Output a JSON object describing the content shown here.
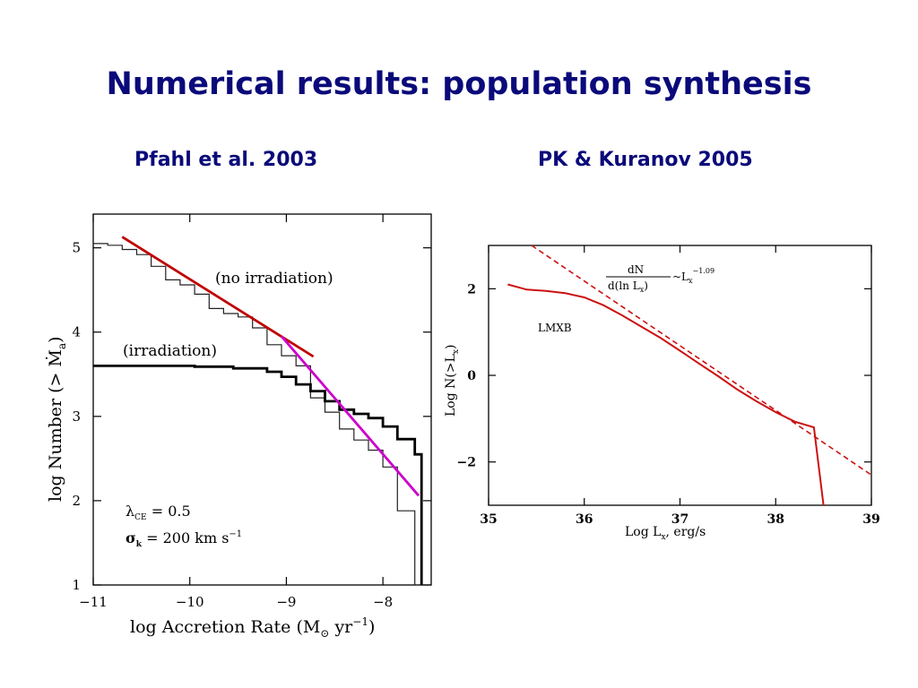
{
  "slide": {
    "title": "Numerical results: population synthesis",
    "left_caption": "Pfahl et al. 2003",
    "right_caption": "PK & Kuranov 2005"
  },
  "chart_data": [
    {
      "type": "line",
      "xlabel": "log Accretion Rate (M",
      "xlabel_sub": "⊙",
      "xlabel_tail": " yr",
      "xlabel_sup": "−1",
      "xlabel_end": ")",
      "ylabel": "log Number (> Ṁ",
      "ylabel_sub": "a",
      "ylabel_end": ")",
      "xlim": [
        -11,
        -7.5
      ],
      "ylim": [
        1,
        5.4
      ],
      "xticks": [
        -11,
        -10,
        -9,
        -8
      ],
      "xtick_labels": [
        "−11",
        "−10",
        "−9",
        "−8"
      ],
      "yticks": [
        1,
        2,
        3,
        4,
        5
      ],
      "ytick_labels": [
        "1",
        "2",
        "3",
        "4",
        "5"
      ],
      "annotations": {
        "no_irradiation": "(no irradiation)",
        "irradiation": "(irradiation)",
        "lambda_label": "λ",
        "lambda_sub": "CE",
        "lambda_value": " = 0.5",
        "sigma_label": "σ",
        "sigma_sub": "k",
        "sigma_value": " = 200  km s",
        "sigma_sup": "−1"
      },
      "series": [
        {
          "style": "step-thin",
          "color": "#222222",
          "points": [
            [
              -11,
              5.05
            ],
            [
              -10.85,
              5.05
            ],
            [
              -10.85,
              5.03
            ],
            [
              -10.7,
              5.03
            ],
            [
              -10.7,
              4.98
            ],
            [
              -10.55,
              4.98
            ],
            [
              -10.55,
              4.92
            ],
            [
              -10.4,
              4.92
            ],
            [
              -10.4,
              4.78
            ],
            [
              -10.25,
              4.78
            ],
            [
              -10.25,
              4.62
            ],
            [
              -10.1,
              4.62
            ],
            [
              -10.1,
              4.56
            ],
            [
              -9.95,
              4.56
            ],
            [
              -9.95,
              4.45
            ],
            [
              -9.8,
              4.45
            ],
            [
              -9.8,
              4.28
            ],
            [
              -9.65,
              4.28
            ],
            [
              -9.65,
              4.22
            ],
            [
              -9.5,
              4.22
            ],
            [
              -9.5,
              4.18
            ],
            [
              -9.35,
              4.18
            ],
            [
              -9.35,
              4.05
            ],
            [
              -9.2,
              4.05
            ],
            [
              -9.2,
              3.85
            ],
            [
              -9.05,
              3.85
            ],
            [
              -9.05,
              3.72
            ],
            [
              -8.9,
              3.72
            ],
            [
              -8.9,
              3.6
            ],
            [
              -8.75,
              3.6
            ],
            [
              -8.75,
              3.22
            ],
            [
              -8.6,
              3.22
            ],
            [
              -8.6,
              3.05
            ],
            [
              -8.45,
              3.05
            ],
            [
              -8.45,
              2.85
            ],
            [
              -8.3,
              2.85
            ],
            [
              -8.3,
              2.72
            ],
            [
              -8.15,
              2.72
            ],
            [
              -8.15,
              2.6
            ],
            [
              -8.0,
              2.6
            ],
            [
              -8.0,
              2.4
            ],
            [
              -7.85,
              2.4
            ],
            [
              -7.85,
              1.88
            ],
            [
              -7.67,
              1.88
            ],
            [
              -7.67,
              1.0
            ]
          ]
        },
        {
          "name": "(irradiation)",
          "style": "step-thick",
          "color": "#000000",
          "points": [
            [
              -11,
              3.6
            ],
            [
              -9.95,
              3.6
            ],
            [
              -9.95,
              3.59
            ],
            [
              -9.55,
              3.59
            ],
            [
              -9.55,
              3.57
            ],
            [
              -9.2,
              3.57
            ],
            [
              -9.2,
              3.53
            ],
            [
              -9.05,
              3.53
            ],
            [
              -9.05,
              3.47
            ],
            [
              -8.9,
              3.47
            ],
            [
              -8.9,
              3.38
            ],
            [
              -8.75,
              3.38
            ],
            [
              -8.75,
              3.3
            ],
            [
              -8.6,
              3.3
            ],
            [
              -8.6,
              3.18
            ],
            [
              -8.45,
              3.18
            ],
            [
              -8.45,
              3.08
            ],
            [
              -8.3,
              3.08
            ],
            [
              -8.3,
              3.03
            ],
            [
              -8.15,
              3.03
            ],
            [
              -8.15,
              2.98
            ],
            [
              -8.0,
              2.98
            ],
            [
              -8.0,
              2.88
            ],
            [
              -7.85,
              2.88
            ],
            [
              -7.85,
              2.73
            ],
            [
              -7.67,
              2.73
            ],
            [
              -7.67,
              2.55
            ],
            [
              -7.6,
              2.55
            ],
            [
              -7.6,
              1.0
            ]
          ]
        },
        {
          "name": "(no irradiation)",
          "style": "fit",
          "color": "#c00000",
          "points": [
            [
              -10.7,
              5.13
            ],
            [
              -8.72,
              3.71
            ]
          ]
        },
        {
          "style": "fit",
          "color": "#cc00cc",
          "points": [
            [
              -9.05,
              3.95
            ],
            [
              -7.63,
              2.06
            ]
          ]
        }
      ]
    },
    {
      "type": "line",
      "xlabel": "Log L",
      "xlabel_sub": "x",
      "xlabel_tail": ", erg/s",
      "ylabel": "Log N(>L",
      "ylabel_sub": "x",
      "ylabel_end": ")",
      "xlim": [
        35,
        39
      ],
      "ylim": [
        -3,
        3
      ],
      "xticks": [
        35,
        36,
        37,
        38,
        39
      ],
      "xtick_labels": [
        "35",
        "36",
        "37",
        "38",
        "39"
      ],
      "yticks": [
        2,
        0,
        -2
      ],
      "ytick_labels": [
        "2",
        "0",
        "−2"
      ],
      "annotations": {
        "series_label": "LMXB",
        "formula_num": "dN",
        "formula_den": "d(ln  L",
        "formula_den_sub": "x",
        "formula_den_end": ")",
        "formula_rel": "~L",
        "formula_rel_sub": "x",
        "formula_exp": "−1.09"
      },
      "series": [
        {
          "name": "LMXB",
          "style": "solid",
          "color": "#cc1111",
          "points": [
            [
              35.2,
              2.1
            ],
            [
              35.4,
              1.98
            ],
            [
              35.6,
              1.95
            ],
            [
              35.8,
              1.9
            ],
            [
              36.0,
              1.8
            ],
            [
              36.2,
              1.62
            ],
            [
              36.4,
              1.38
            ],
            [
              36.6,
              1.12
            ],
            [
              36.8,
              0.86
            ],
            [
              37.0,
              0.57
            ],
            [
              37.2,
              0.27
            ],
            [
              37.4,
              -0.02
            ],
            [
              37.6,
              -0.33
            ],
            [
              37.8,
              -0.6
            ],
            [
              38.0,
              -0.85
            ],
            [
              38.2,
              -1.07
            ],
            [
              38.4,
              -1.2
            ],
            [
              38.5,
              -3.0
            ]
          ]
        },
        {
          "style": "dashed",
          "color": "#cc1111",
          "points": [
            [
              35.45,
              3.0
            ],
            [
              39.0,
              -2.3
            ]
          ]
        }
      ]
    }
  ]
}
